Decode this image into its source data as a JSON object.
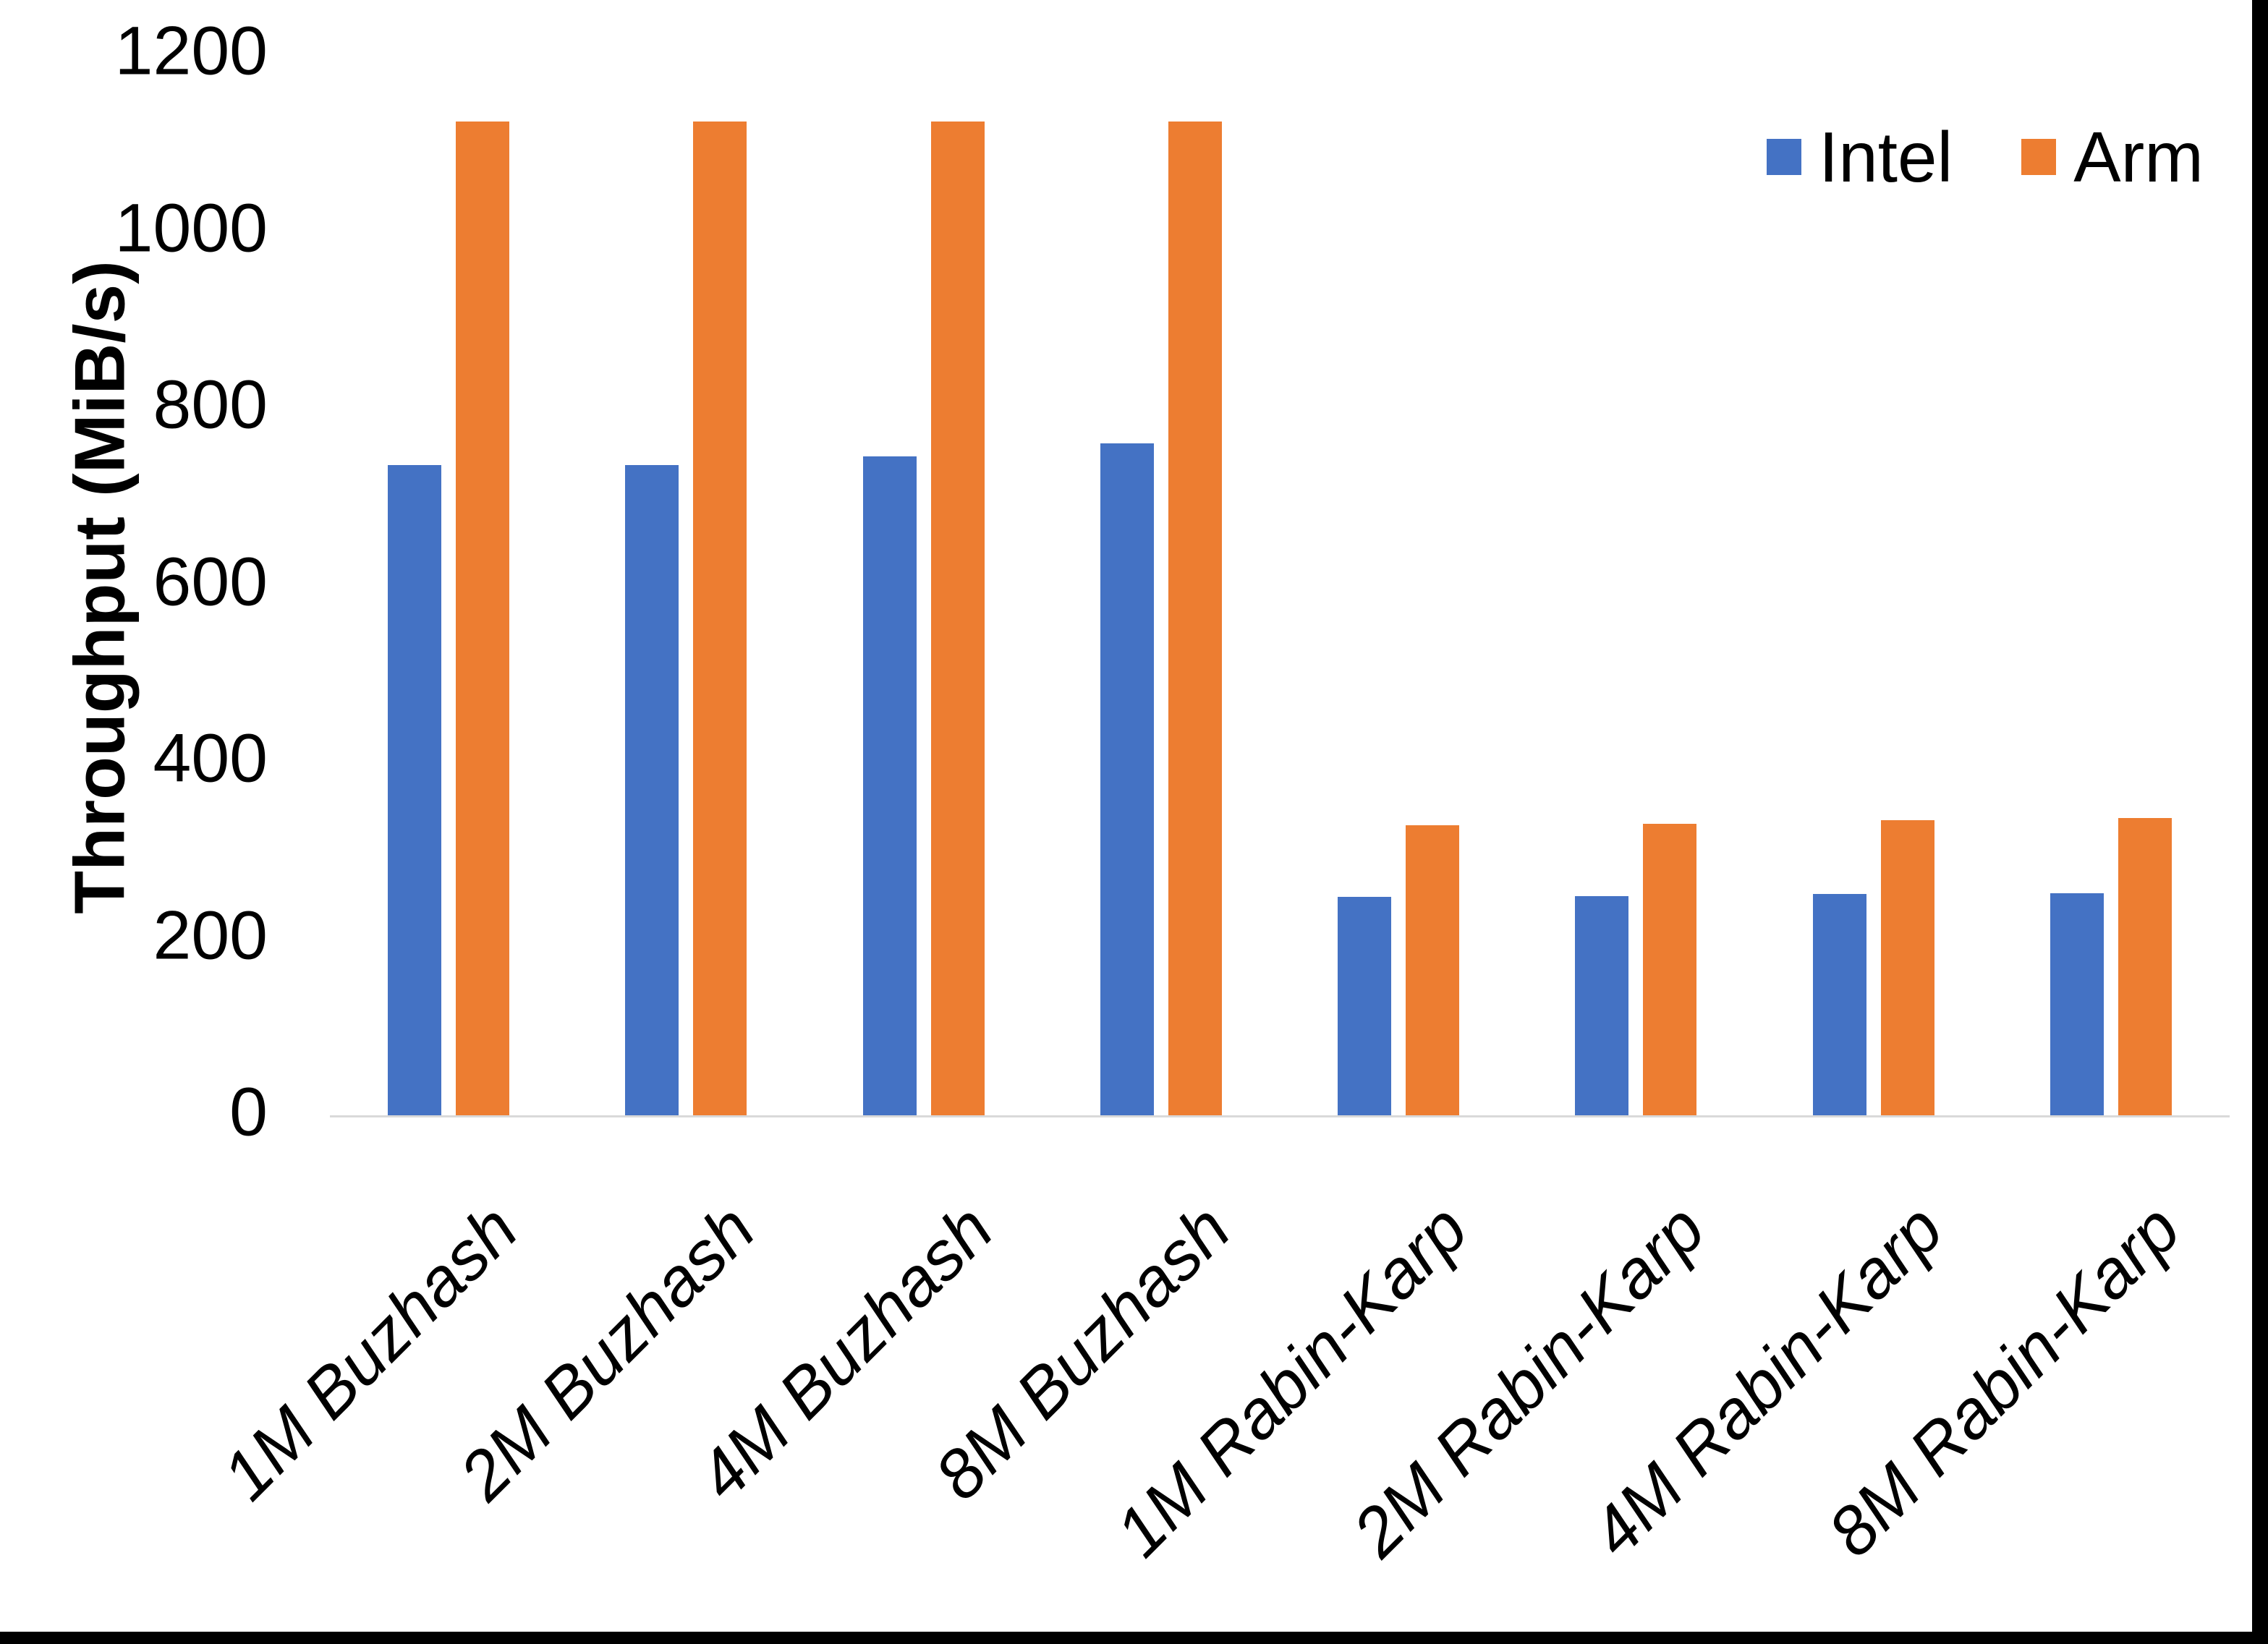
{
  "chart_data": {
    "type": "bar",
    "title": "",
    "xlabel": "",
    "ylabel": "Throughput (MiB/s)",
    "ylim": [
      0,
      1200
    ],
    "yticks": [
      0,
      200,
      400,
      600,
      800,
      1000,
      1200
    ],
    "grid": false,
    "legend_position": "top-right",
    "categories": [
      "1M Buzhash",
      "2M Buzhash",
      "4M Buzhash",
      "8M Buzhash",
      "1M Rabin-Karp",
      "2M Rabin-Karp",
      "4M Rabin-Karp",
      "8M Rabin-Karp"
    ],
    "series": [
      {
        "name": "Intel",
        "color": "#4472C4",
        "values": [
          735,
          735,
          745,
          760,
          247,
          248,
          250,
          251
        ]
      },
      {
        "name": "Arm",
        "color": "#ED7D31",
        "values": [
          1124,
          1124,
          1124,
          1124,
          328,
          330,
          334,
          336
        ]
      }
    ],
    "axis_line_color": "#D9D9D9",
    "text_color": "#000000"
  }
}
